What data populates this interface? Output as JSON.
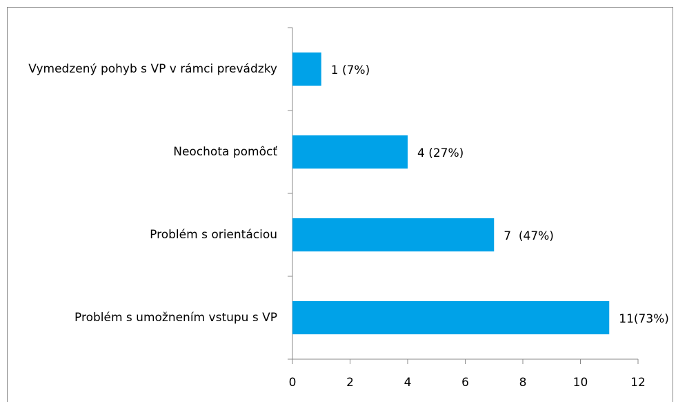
{
  "chart_data": {
    "type": "barh",
    "categories": [
      "Vymedzený pohyb s VP v rámci prevádzky",
      "Neochota pomôcť",
      "Problém s orientáciou",
      "Problém s umožnením vstupu s VP"
    ],
    "values": [
      1,
      4,
      7,
      11
    ],
    "value_labels": [
      "1 (7%)",
      "4 (27%)",
      "7  (47%)",
      "11(73%)"
    ],
    "color": "#00a2e8",
    "xlim": [
      0,
      12
    ],
    "xticks": [
      0,
      2,
      4,
      6,
      8,
      10,
      12
    ]
  }
}
